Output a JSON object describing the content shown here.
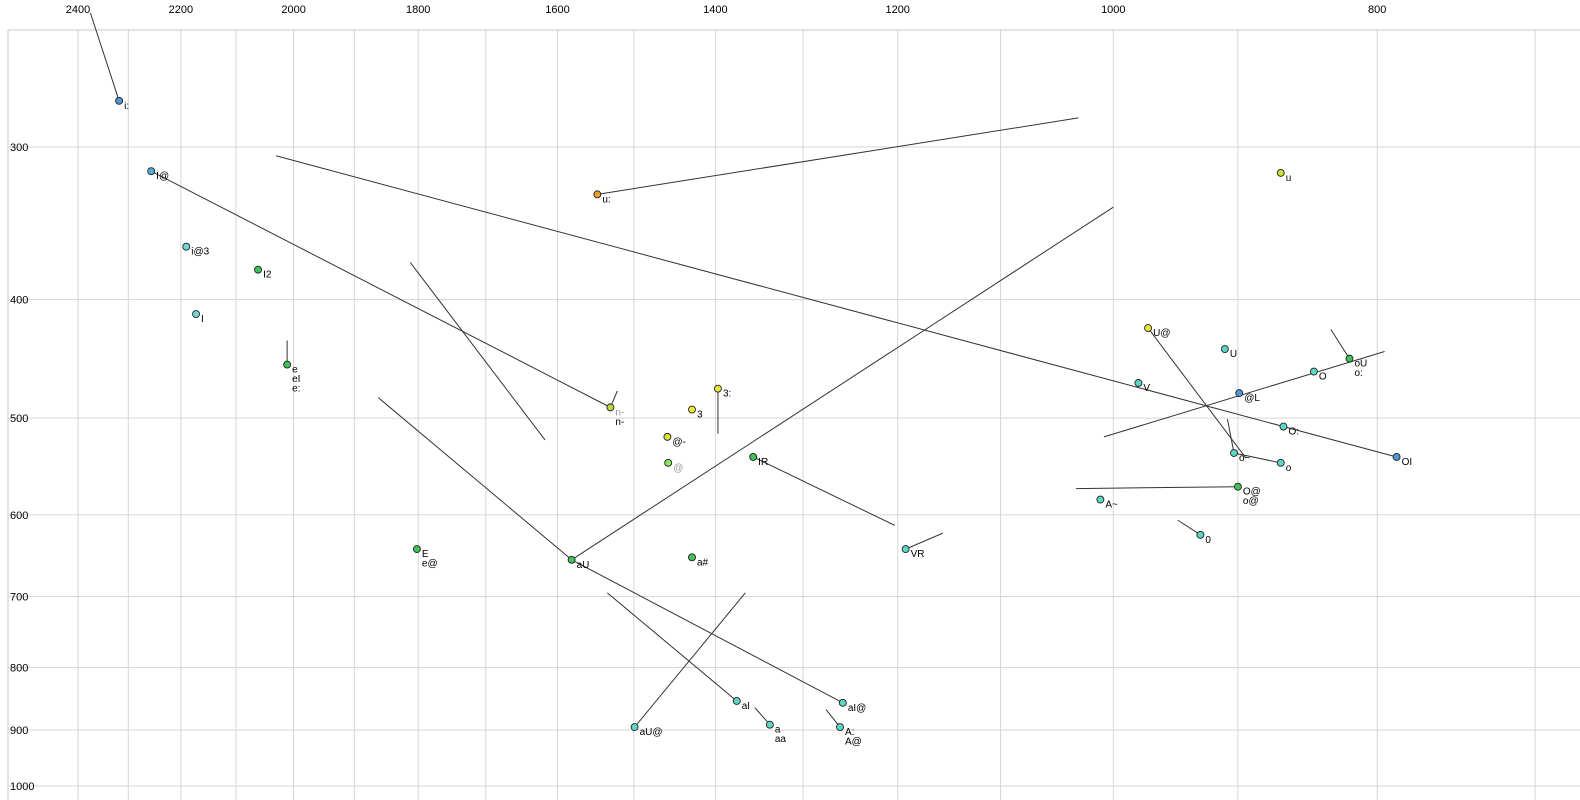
{
  "chart_data": {
    "type": "scatter",
    "title": "",
    "xlabel": "F2 (Hz)",
    "ylabel": "F1 (Hz)",
    "x_axis": {
      "scale": "log",
      "direction": "reversed",
      "unit": "Hz",
      "tick_labels": [
        2400,
        2200,
        2000,
        1800,
        1600,
        1400,
        1200,
        1000,
        800
      ],
      "grid_min": 700,
      "grid_max": 2400,
      "grid_step": 100
    },
    "y_axis": {
      "scale": "log",
      "direction": "down",
      "unit": "Hz",
      "tick_labels": [
        300,
        400,
        500,
        600,
        700,
        800,
        900,
        1000
      ],
      "grid_min": 300,
      "grid_max": 1000,
      "grid_step": 100
    },
    "style": {
      "grid_color": "#d6d6d6",
      "frame_color": "#c9c9c9",
      "line_color": "#333333",
      "point_stroke": "#222222",
      "background": "#ffffff"
    },
    "points": [
      {
        "labels": [
          "i:"
        ],
        "f2": 2318,
        "f1": 275,
        "color": "#4f97d7"
      },
      {
        "labels": [
          "I@"
        ],
        "f2": 2256,
        "f1": 314,
        "color": "#56aed6"
      },
      {
        "labels": [
          "i@3"
        ],
        "f2": 2190,
        "f1": 362,
        "color": "#74d6d6"
      },
      {
        "labels": [
          "I2"
        ],
        "f2": 2061,
        "f1": 378,
        "color": "#3fc257"
      },
      {
        "labels": [
          "I"
        ],
        "f2": 2172,
        "f1": 411,
        "color": "#74d6d6"
      },
      {
        "labels": [
          "e",
          "eI",
          "e:"
        ],
        "f2": 2011,
        "f1": 452,
        "color": "#3fc257"
      },
      {
        "labels": [
          "u:"
        ],
        "f2": 1547,
        "f1": 328,
        "color": "#efa02c"
      },
      {
        "labels": [
          "n-",
          "n-"
        ],
        "label_colors": [
          "#9a9a9a",
          "#000000"
        ],
        "f2": 1530,
        "f1": 490,
        "color": "#b9da3c"
      },
      {
        "labels": [
          "3"
        ],
        "f2": 1428,
        "f1": 492,
        "color": "#ece53a"
      },
      {
        "labels": [
          "3:"
        ],
        "f2": 1397,
        "f1": 473,
        "color": "#ece53a"
      },
      {
        "labels": [
          "@-"
        ],
        "f2": 1458,
        "f1": 518,
        "color": "#e2e23a"
      },
      {
        "labels": [
          "@"
        ],
        "label_colors": [
          "#9a9a9a"
        ],
        "f2": 1457,
        "f1": 544,
        "color": "#86e85c"
      },
      {
        "labels": [
          "IR"
        ],
        "f2": 1356,
        "f1": 538,
        "color": "#3fc257"
      },
      {
        "labels": [
          "E",
          "e@"
        ],
        "f2": 1802,
        "f1": 640,
        "color": "#3fc257"
      },
      {
        "labels": [
          "aU"
        ],
        "f2": 1581,
        "f1": 653,
        "color": "#3fc257"
      },
      {
        "labels": [
          "a#"
        ],
        "f2": 1428,
        "f1": 650,
        "color": "#3fc257"
      },
      {
        "labels": [
          "VR"
        ],
        "f2": 1192,
        "f1": 640,
        "color": "#5cd6c8"
      },
      {
        "labels": [
          "aI"
        ],
        "f2": 1375,
        "f1": 852,
        "color": "#5cd6c8"
      },
      {
        "labels": [
          "aU@"
        ],
        "f2": 1499,
        "f1": 895,
        "color": "#5cd6c8"
      },
      {
        "labels": [
          "a",
          "aa"
        ],
        "f2": 1337,
        "f1": 891,
        "color": "#5cd6c8"
      },
      {
        "labels": [
          "aI@"
        ],
        "f2": 1257,
        "f1": 855,
        "color": "#5cd6c8"
      },
      {
        "labels": [
          "A:",
          "A@"
        ],
        "f2": 1260,
        "f1": 895,
        "color": "#5cd6c8"
      },
      {
        "labels": [
          "u"
        ],
        "f2": 868,
        "f1": 315,
        "color": "#cde03c"
      },
      {
        "labels": [
          "U@"
        ],
        "f2": 971,
        "f1": 422,
        "color": "#ece53a"
      },
      {
        "labels": [
          "U"
        ],
        "f2": 910,
        "f1": 439,
        "color": "#5cd6c8"
      },
      {
        "labels": [
          "V"
        ],
        "f2": 979,
        "f1": 468,
        "color": "#5cd6c8"
      },
      {
        "labels": [
          "@L"
        ],
        "f2": 899,
        "f1": 477,
        "color": "#4f97d7"
      },
      {
        "labels": [
          "O"
        ],
        "f2": 844,
        "f1": 458,
        "color": "#5cd6c8"
      },
      {
        "labels": [
          "oU",
          "o:"
        ],
        "f2": 819,
        "f1": 447,
        "color": "#3fc257"
      },
      {
        "labels": [
          "O:"
        ],
        "f2": 866,
        "f1": 508,
        "color": "#5cd6c8"
      },
      {
        "labels": [
          "o~"
        ],
        "f2": 903,
        "f1": 534,
        "color": "#5cd6c8"
      },
      {
        "labels": [
          "o"
        ],
        "f2": 868,
        "f1": 544,
        "color": "#5cd6c8"
      },
      {
        "labels": [
          "OI"
        ],
        "f2": 787,
        "f1": 538,
        "color": "#4f97d7"
      },
      {
        "labels": [
          "O@",
          "o@"
        ],
        "f2": 900,
        "f1": 569,
        "color": "#3fc257"
      },
      {
        "labels": [
          "A~"
        ],
        "f2": 1011,
        "f1": 583,
        "color": "#5cd6c8"
      },
      {
        "labels": [
          "0"
        ],
        "f2": 929,
        "f1": 623,
        "color": "#5cd6c8"
      }
    ],
    "segments": [
      [
        2375,
        233,
        2318,
        275
      ],
      [
        1547,
        328,
        1030,
        284
      ],
      [
        2030,
        305,
        787,
        538
      ],
      [
        2256,
        314,
        1530,
        490
      ],
      [
        1812,
        373,
        1617,
        521
      ],
      [
        1862,
        481,
        1581,
        653
      ],
      [
        1581,
        653,
        1000,
        336
      ],
      [
        971,
        422,
        894,
        539
      ],
      [
        1008,
        518,
        795,
        441
      ],
      [
        1356,
        538,
        1203,
        612
      ],
      [
        1257,
        855,
        1581,
        653
      ],
      [
        1375,
        852,
        1534,
        695
      ],
      [
        1499,
        895,
        1365,
        695
      ],
      [
        1337,
        891,
        1354,
        863
      ],
      [
        1260,
        895,
        1275,
        866
      ],
      [
        832,
        423,
        819,
        447
      ],
      [
        908,
        501,
        903,
        534
      ],
      [
        903,
        534,
        868,
        544
      ],
      [
        1032,
        571,
        900,
        569
      ],
      [
        947,
        606,
        929,
        623
      ],
      [
        1192,
        640,
        1155,
        621
      ],
      [
        2011,
        432,
        2011,
        452
      ],
      [
        1397,
        473,
        1397,
        515
      ],
      [
        1521,
        475,
        1530,
        490
      ]
    ]
  }
}
